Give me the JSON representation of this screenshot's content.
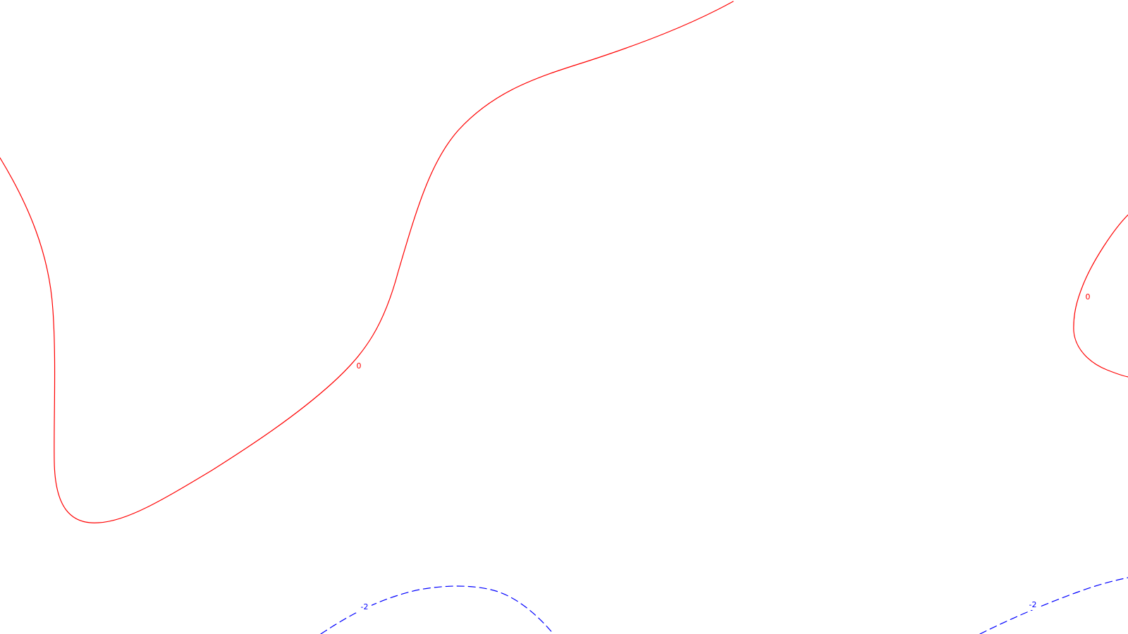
{
  "colors": {
    "background": "#ffffff",
    "positive_contour": "#ff0000",
    "negative_contour": "#0000ff"
  },
  "contours": [
    {
      "level": "0",
      "color": "#ff0000",
      "style": "solid"
    },
    {
      "level": "0",
      "color": "#ff0000",
      "style": "solid"
    },
    {
      "level": "-2",
      "color": "#0000ff",
      "style": "dashed"
    },
    {
      "level": "-2",
      "color": "#0000ff",
      "style": "dashed"
    }
  ],
  "labels": [
    "0",
    "0",
    "-2",
    "-2"
  ]
}
